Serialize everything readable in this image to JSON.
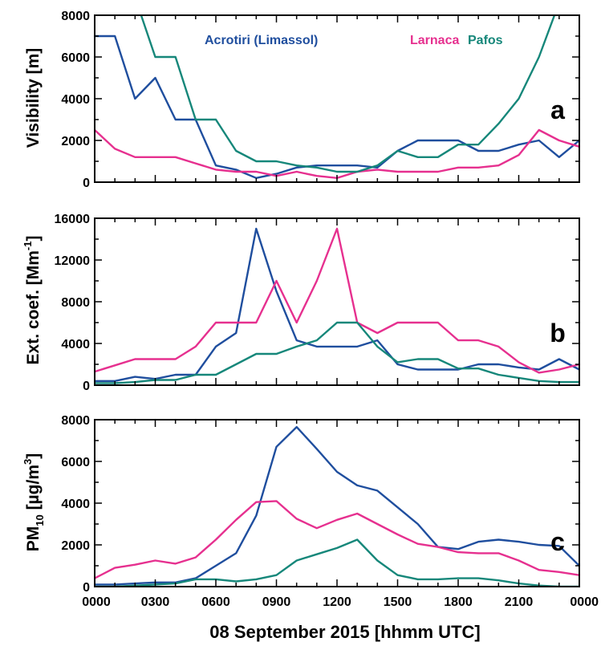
{
  "x_axis": {
    "title": "08 September 2015 [hhmm UTC]",
    "ticks": [
      "0000",
      "0300",
      "0600",
      "0900",
      "1200",
      "1500",
      "1800",
      "2100",
      "0000"
    ]
  },
  "legend": {
    "acrotiri": "Acrotiri (Limassol)",
    "larnaca": "Larnaca",
    "pafos": "Pafos"
  },
  "colors": {
    "acrotiri": "#1f4e9e",
    "larnaca": "#e6308f",
    "pafos": "#16877a"
  },
  "chart_data": [
    {
      "type": "line",
      "panel_letter": "a",
      "ylabel": "Visibility [m]",
      "ylim": [
        0,
        8000
      ],
      "yticks": [
        "0",
        "2000",
        "4000",
        "6000",
        "8000"
      ],
      "x_unit": "hour of day (UTC)",
      "xlim": [
        0,
        24
      ],
      "series": [
        {
          "name": "Acrotiri (Limassol)",
          "key": "acrotiri",
          "x": [
            0,
            1,
            2,
            3,
            4,
            5,
            6,
            7,
            8,
            9,
            10,
            11,
            12,
            13,
            14,
            15,
            16,
            17,
            18,
            19,
            20,
            21,
            22,
            23,
            24
          ],
          "y": [
            7000,
            7000,
            4000,
            5000,
            3000,
            3000,
            800,
            600,
            200,
            400,
            700,
            800,
            800,
            800,
            700,
            1500,
            2000,
            2000,
            2000,
            1500,
            1500,
            1800,
            2000,
            1200,
            2000
          ]
        },
        {
          "name": "Larnaca",
          "key": "larnaca",
          "x": [
            0,
            1,
            2,
            3,
            4,
            5,
            6,
            7,
            8,
            9,
            10,
            11,
            12,
            13,
            14,
            15,
            16,
            17,
            18,
            19,
            20,
            21,
            22,
            23,
            24
          ],
          "y": [
            2500,
            1600,
            1200,
            1200,
            1200,
            900,
            600,
            500,
            500,
            300,
            500,
            300,
            200,
            500,
            600,
            500,
            500,
            500,
            700,
            700,
            800,
            1300,
            2500,
            2000,
            1700
          ]
        },
        {
          "name": "Pafos",
          "key": "pafos",
          "x": [
            2.3,
            3,
            4,
            5,
            6,
            7,
            8,
            9,
            10,
            11,
            12,
            13,
            14,
            15,
            16,
            17,
            18,
            19,
            20,
            21,
            22,
            23,
            23.4
          ],
          "y": [
            8000,
            6000,
            6000,
            3000,
            3000,
            1500,
            1000,
            1000,
            800,
            700,
            500,
            500,
            800,
            1500,
            1200,
            1200,
            1800,
            1800,
            2800,
            4000,
            6000,
            8600,
            9000
          ]
        }
      ]
    },
    {
      "type": "line",
      "panel_letter": "b",
      "ylabel": "Ext. coef. [Mm",
      "ylabel_sup": "-1",
      "ylabel_end": "]",
      "ylim": [
        0,
        16000
      ],
      "yticks": [
        "0",
        "4000",
        "8000",
        "12000",
        "16000"
      ],
      "x_unit": "hour of day (UTC)",
      "xlim": [
        0,
        24
      ],
      "series": [
        {
          "name": "Acrotiri (Limassol)",
          "key": "acrotiri",
          "x": [
            0,
            1,
            2,
            3,
            4,
            5,
            6,
            7,
            8,
            9,
            10,
            11,
            12,
            13,
            14,
            15,
            16,
            17,
            18,
            19,
            20,
            21,
            22,
            23,
            24
          ],
          "y": [
            400,
            400,
            800,
            600,
            1000,
            1000,
            3700,
            5000,
            15000,
            9000,
            4300,
            3700,
            3700,
            3700,
            4300,
            2000,
            1500,
            1500,
            1500,
            2000,
            2000,
            1700,
            1500,
            2500,
            1500
          ]
        },
        {
          "name": "Larnaca",
          "key": "larnaca",
          "x": [
            0,
            1,
            2,
            3,
            4,
            5,
            6,
            7,
            8,
            9,
            10,
            11,
            12,
            13,
            14,
            15,
            16,
            17,
            18,
            19,
            20,
            21,
            22,
            23,
            24
          ],
          "y": [
            1300,
            1900,
            2500,
            2500,
            2500,
            3700,
            6000,
            6000,
            6000,
            10000,
            6000,
            10000,
            15000,
            6000,
            5000,
            6000,
            6000,
            6000,
            4300,
            4300,
            3700,
            2200,
            1200,
            1500,
            2000
          ]
        },
        {
          "name": "Pafos",
          "key": "pafos",
          "x": [
            0,
            1,
            2,
            3,
            4,
            5,
            6,
            7,
            8,
            9,
            10,
            11,
            12,
            13,
            14,
            15,
            16,
            17,
            18,
            19,
            20,
            21,
            22,
            23,
            24
          ],
          "y": [
            200,
            200,
            300,
            500,
            500,
            1000,
            1000,
            2000,
            3000,
            3000,
            3700,
            4300,
            6000,
            6000,
            3700,
            2200,
            2500,
            2500,
            1600,
            1600,
            1000,
            700,
            400,
            300,
            300
          ]
        }
      ]
    },
    {
      "type": "line",
      "panel_letter": "c",
      "ylabel": "PM",
      "ylabel_sub": "10",
      "ylabel_mid": " [µg/m",
      "ylabel_sup": "3",
      "ylabel_end": "]",
      "ylim": [
        0,
        8000
      ],
      "yticks": [
        "0",
        "2000",
        "4000",
        "6000",
        "8000"
      ],
      "x_unit": "hour of day (UTC)",
      "xlim": [
        0,
        24
      ],
      "series": [
        {
          "name": "Acrotiri (Limassol)",
          "key": "acrotiri",
          "x": [
            0,
            1,
            2,
            3,
            4,
            5,
            6,
            7,
            8,
            9,
            10,
            11,
            12,
            13,
            14,
            15,
            16,
            17,
            18,
            19,
            20,
            21,
            22,
            23,
            24
          ],
          "y": [
            100,
            100,
            150,
            200,
            200,
            400,
            1000,
            1600,
            3400,
            6700,
            7650,
            6600,
            5500,
            4850,
            4600,
            3800,
            3000,
            1900,
            1800,
            2150,
            2250,
            2150,
            2000,
            1950,
            1000
          ]
        },
        {
          "name": "Larnaca",
          "key": "larnaca",
          "x": [
            0,
            1,
            2,
            3,
            4,
            5,
            6,
            7,
            8,
            9,
            10,
            11,
            12,
            13,
            14,
            15,
            16,
            17,
            18,
            19,
            20,
            21,
            22,
            23,
            24
          ],
          "y": [
            400,
            900,
            1050,
            1250,
            1100,
            1400,
            2250,
            3200,
            4050,
            4100,
            3250,
            2800,
            3200,
            3500,
            3000,
            2500,
            2050,
            1900,
            1650,
            1600,
            1600,
            1250,
            800,
            700,
            550
          ]
        },
        {
          "name": "Pafos",
          "key": "pafos",
          "x": [
            0,
            1,
            2,
            3,
            4,
            5,
            6,
            7,
            8,
            9,
            10,
            11,
            12,
            13,
            14,
            15,
            16,
            17,
            18,
            19,
            20,
            21,
            22,
            23,
            24
          ],
          "y": [
            0,
            0,
            50,
            100,
            150,
            350,
            350,
            250,
            350,
            550,
            1250,
            1550,
            1850,
            2250,
            1250,
            550,
            350,
            350,
            400,
            400,
            300,
            150,
            50,
            0,
            0
          ]
        }
      ]
    }
  ]
}
